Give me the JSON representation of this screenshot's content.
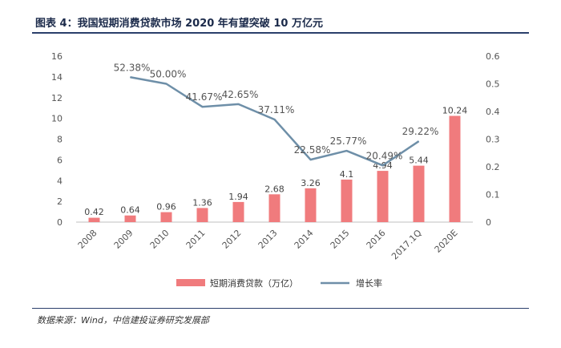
{
  "title": "图表 4：我国短期消费贷款市场 2020 年有望突破 10 万亿元",
  "source": "数据来源：Wind，中信建投证券研究发展部",
  "colors": {
    "bar": "#f07b7d",
    "line": "#6e8fa8",
    "rule": "#2b3f6b"
  },
  "chart_data": {
    "type": "bar",
    "categories": [
      "2008",
      "2009",
      "2010",
      "2011",
      "2012",
      "2013",
      "2014",
      "2015",
      "2016",
      "2017.1Q",
      "2020E"
    ],
    "series": [
      {
        "name": "短期消费贷款（万亿）",
        "type": "bar",
        "axis": "left",
        "values": [
          0.42,
          0.64,
          0.96,
          1.36,
          1.94,
          2.68,
          3.26,
          4.1,
          4.94,
          5.44,
          10.24
        ],
        "labels": [
          "0.42",
          "0.64",
          "0.96",
          "1.36",
          "1.94",
          "2.68",
          "3.26",
          "4.1",
          "4.94",
          "5.44",
          "10.24"
        ]
      },
      {
        "name": "增长率",
        "type": "line",
        "axis": "right",
        "values": [
          null,
          0.5238,
          0.5,
          0.4167,
          0.4265,
          0.3711,
          0.2258,
          0.2577,
          0.2049,
          0.2922,
          null
        ],
        "labels": [
          "",
          "52.38%",
          "50.00%",
          "41.67%",
          "42.65%",
          "37.11%",
          "22.58%",
          "25.77%",
          "20.49%",
          "29.22%",
          ""
        ]
      }
    ],
    "y_left": {
      "min": 0,
      "max": 16,
      "ticks": [
        "0",
        "2",
        "4",
        "6",
        "8",
        "10",
        "12",
        "14",
        "16"
      ]
    },
    "y_right": {
      "min": 0,
      "max": 0.6,
      "ticks": [
        "0",
        "0.1",
        "0.2",
        "0.3",
        "0.4",
        "0.5",
        "0.6"
      ]
    },
    "grid": false,
    "legend": "bottom"
  }
}
